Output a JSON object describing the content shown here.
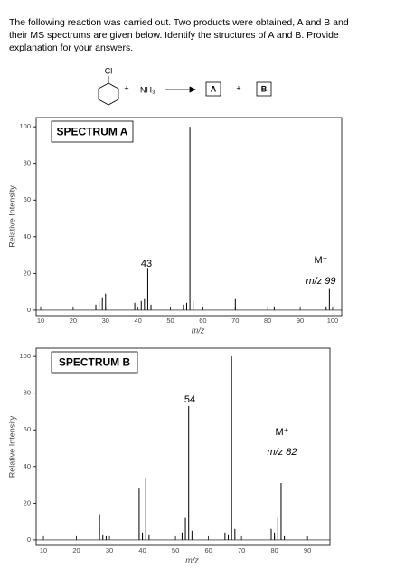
{
  "question": [
    "The following reaction was carried out. Two products were obtained, A and B and",
    "their MS spectrums are given below. Identify the structures of A and B. Provide",
    "explanation for your answers."
  ],
  "reaction": {
    "substituent": "Cl",
    "plus": "+",
    "reagent": "NH₃",
    "product_a": "A",
    "product_b": "B"
  },
  "chart_data": [
    {
      "type": "bar",
      "title": "SPECTRUM A",
      "x_label": "m/z",
      "y_label": "Relative Intensity",
      "color": "#000000",
      "x": [
        27,
        28,
        29,
        30,
        39,
        41,
        42,
        43,
        44,
        54,
        55,
        56,
        57,
        70,
        82,
        98,
        99
      ],
      "values": [
        3,
        5,
        7,
        9,
        4,
        5,
        6,
        23,
        3,
        3,
        4,
        100,
        5,
        6,
        2,
        2,
        12
      ],
      "xlim": [
        8.6,
        102.8
      ],
      "ylim": [
        -3,
        105
      ],
      "xticks": [
        10,
        20,
        30,
        40,
        50,
        60,
        70,
        80,
        90,
        100
      ],
      "yticks": [
        0,
        20,
        40,
        60,
        80,
        100
      ],
      "annotations": [
        "43",
        "M⁺",
        "m/z 99"
      ]
    },
    {
      "type": "bar",
      "title": "SPECTRUM B",
      "x_label": "m/z",
      "y_label": "Relative Intensity",
      "color": "#000000",
      "x": [
        27,
        28,
        29,
        39,
        40,
        41,
        42,
        52,
        53,
        54,
        55,
        65,
        66,
        67,
        68,
        79,
        80,
        81,
        82,
        83
      ],
      "values": [
        14,
        3,
        2,
        28,
        4,
        34,
        3,
        4,
        12,
        73,
        5,
        4,
        3,
        100,
        6,
        6,
        4,
        12,
        31,
        2
      ],
      "xlim": [
        7.8,
        96.8
      ],
      "ylim": [
        -3,
        104.5
      ],
      "xticks": [
        10,
        20,
        30,
        40,
        50,
        60,
        70,
        80,
        90
      ],
      "yticks": [
        0,
        20,
        40,
        60,
        80,
        100
      ],
      "annotations": [
        "54",
        "M⁺",
        "m/z 82"
      ]
    }
  ]
}
